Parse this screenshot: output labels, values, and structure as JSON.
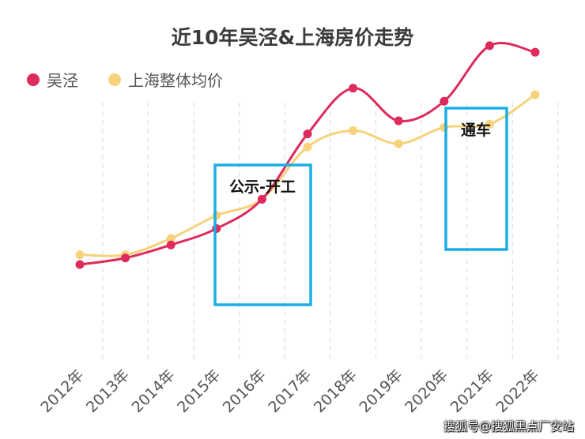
{
  "chart_data": {
    "type": "line",
    "title": "近10年吴泾&上海房价走势",
    "categories": [
      "2012年",
      "2013年",
      "2014年",
      "2015年",
      "2016年",
      "2017年",
      "2018年",
      "2019年",
      "2020年",
      "2021年",
      "2022年"
    ],
    "series": [
      {
        "name": "吴泾",
        "color": "#de2a5c",
        "values": [
          29,
          31,
          35,
          40,
          49,
          69,
          83,
          73,
          79,
          96,
          94
        ]
      },
      {
        "name": "上海整体均价",
        "color": "#f6d27a",
        "values": [
          32,
          32,
          37,
          44,
          49,
          65,
          70,
          66,
          71,
          72,
          81
        ]
      }
    ],
    "annotations": [
      {
        "label": "公示-开工",
        "x_start": "2015年",
        "x_end": "2017年"
      },
      {
        "label": "通车",
        "x_start": "2020年",
        "x_end": "2021年"
      }
    ],
    "annotation_color": "#1aaee5",
    "ylim": [
      0,
      110
    ],
    "grid": "vertical-dashed",
    "legend": "top-left"
  },
  "watermark": "搜狐号@搜狐黑点厂安站"
}
